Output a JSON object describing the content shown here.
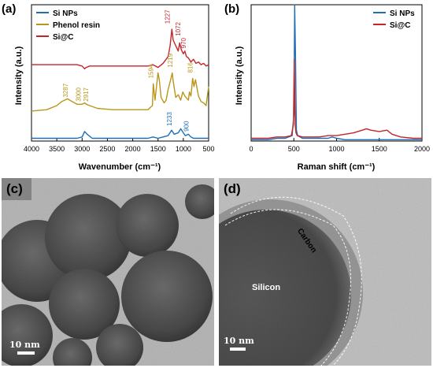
{
  "panels": {
    "a": {
      "letter": "(a)"
    },
    "b": {
      "letter": "(b)"
    },
    "c": {
      "letter": "(c)",
      "scale_label": "10 nm"
    },
    "d": {
      "letter": "(d)",
      "scale_label": "10 nm",
      "label_silicon": "Silicon",
      "label_carbon": "Carbon"
    }
  },
  "colors": {
    "si_nps": "#1f6fb5",
    "phenol_resin": "#b8961c",
    "sic": "#c2252a"
  },
  "chart_data": [
    {
      "type": "line",
      "xlabel": "Wavenumber (cm⁻¹)",
      "ylabel": "Intensity (a.u.)",
      "xlim": [
        4000,
        500
      ],
      "x_ticks": [
        "4000",
        "3500",
        "3000",
        "2500",
        "2000",
        "1500",
        "1000",
        "500"
      ],
      "legend_position": "top-left",
      "series": [
        {
          "name": "Si NPs",
          "color": "#1f6fb5",
          "x": [
            4000,
            3600,
            3300,
            3100,
            3000,
            2950,
            2900,
            2800,
            2500,
            2000,
            1700,
            1600,
            1500,
            1400,
            1300,
            1233,
            1180,
            1100,
            1050,
            1000,
            960,
            900,
            850,
            800,
            700,
            600,
            500
          ],
          "y": [
            0.02,
            0.02,
            0.02,
            0.02,
            0.03,
            0.07,
            0.05,
            0.02,
            0.02,
            0.02,
            0.02,
            0.03,
            0.02,
            0.03,
            0.04,
            0.08,
            0.05,
            0.06,
            0.09,
            0.06,
            0.04,
            0.05,
            0.03,
            0.02,
            0.02,
            0.02,
            0.02
          ]
        },
        {
          "name": "Phenol resin",
          "color": "#b8961c",
          "x": [
            4000,
            3700,
            3500,
            3400,
            3287,
            3200,
            3100,
            3000,
            2950,
            2917,
            2850,
            2700,
            2400,
            2100,
            1900,
            1700,
            1610,
            1594,
            1560,
            1500,
            1475,
            1440,
            1380,
            1340,
            1300,
            1250,
            1219,
            1200,
            1150,
            1100,
            1050,
            1010,
            970,
            900,
            880,
            850,
            816,
            790,
            760,
            700,
            650,
            600,
            550,
            500
          ],
          "y": [
            0.22,
            0.23,
            0.26,
            0.29,
            0.31,
            0.29,
            0.27,
            0.27,
            0.28,
            0.27,
            0.26,
            0.24,
            0.23,
            0.23,
            0.23,
            0.23,
            0.26,
            0.42,
            0.3,
            0.5,
            0.45,
            0.32,
            0.28,
            0.3,
            0.38,
            0.45,
            0.5,
            0.44,
            0.32,
            0.34,
            0.3,
            0.36,
            0.33,
            0.3,
            0.36,
            0.33,
            0.46,
            0.4,
            0.45,
            0.33,
            0.29,
            0.28,
            0.26,
            0.4
          ]
        },
        {
          "name": "Si@C",
          "color": "#c2252a",
          "x": [
            4000,
            3700,
            3500,
            3300,
            3100,
            3000,
            2950,
            2920,
            2850,
            2600,
            2300,
            2000,
            1800,
            1700,
            1600,
            1500,
            1400,
            1300,
            1260,
            1227,
            1200,
            1150,
            1100,
            1072,
            1040,
            1000,
            970,
            940,
            900,
            850,
            800,
            750,
            700,
            650,
            600,
            550,
            500
          ],
          "y": [
            0.56,
            0.56,
            0.56,
            0.56,
            0.56,
            0.55,
            0.53,
            0.54,
            0.55,
            0.55,
            0.55,
            0.55,
            0.55,
            0.55,
            0.56,
            0.54,
            0.57,
            0.62,
            0.7,
            0.82,
            0.74,
            0.7,
            0.66,
            0.72,
            0.67,
            0.64,
            0.66,
            0.62,
            0.61,
            0.58,
            0.6,
            0.57,
            0.58,
            0.56,
            0.57,
            0.55,
            0.56
          ]
        }
      ],
      "annotations": [
        {
          "text": "3287",
          "x": 3287,
          "y": 0.32,
          "color": "#b8961c"
        },
        {
          "text": "3000",
          "x": 3030,
          "y": 0.29,
          "color": "#b8961c"
        },
        {
          "text": "2917",
          "x": 2880,
          "y": 0.29,
          "color": "#b8961c"
        },
        {
          "text": "1594",
          "x": 1594,
          "y": 0.46,
          "color": "#b8961c"
        },
        {
          "text": "1219",
          "x": 1219,
          "y": 0.54,
          "color": "#b8961c"
        },
        {
          "text": "816",
          "x": 816,
          "y": 0.5,
          "color": "#b8961c"
        },
        {
          "text": "1227",
          "x": 1270,
          "y": 0.86,
          "color": "#c2252a"
        },
        {
          "text": "1072",
          "x": 1060,
          "y": 0.77,
          "color": "#c2252a"
        },
        {
          "text": "970",
          "x": 950,
          "y": 0.68,
          "color": "#c2252a"
        },
        {
          "text": "1233",
          "x": 1233,
          "y": 0.11,
          "color": "#1f6fb5"
        },
        {
          "text": "900",
          "x": 900,
          "y": 0.07,
          "color": "#1f6fb5"
        }
      ]
    },
    {
      "type": "line",
      "xlabel": "Raman shift (cm⁻¹)",
      "ylabel": "Intensity (a.u.)",
      "xlim": [
        0,
        2000
      ],
      "x_ticks": [
        "0",
        "500",
        "1000",
        "1500",
        "2000"
      ],
      "legend_position": "top-right",
      "series": [
        {
          "name": "Si NPs",
          "color": "#1f6fb5",
          "x": [
            0,
            100,
            200,
            300,
            400,
            480,
            500,
            510,
            520,
            530,
            545,
            600,
            800,
            900,
            950,
            1000,
            1100,
            1300,
            1500,
            1700,
            2000
          ],
          "y": [
            0.01,
            0.01,
            0.01,
            0.02,
            0.02,
            0.04,
            0.2,
            1.0,
            0.6,
            0.08,
            0.04,
            0.02,
            0.02,
            0.02,
            0.03,
            0.02,
            0.01,
            0.01,
            0.01,
            0.01,
            0.01
          ]
        },
        {
          "name": "Si@C",
          "color": "#c2252a",
          "x": [
            0,
            100,
            200,
            300,
            400,
            470,
            495,
            505,
            515,
            525,
            540,
            600,
            800,
            900,
            950,
            1000,
            1100,
            1200,
            1300,
            1350,
            1400,
            1500,
            1590,
            1650,
            1750,
            1900,
            2000
          ],
          "y": [
            0.02,
            0.02,
            0.02,
            0.03,
            0.03,
            0.04,
            0.12,
            0.6,
            0.12,
            0.06,
            0.04,
            0.03,
            0.03,
            0.04,
            0.04,
            0.04,
            0.05,
            0.06,
            0.08,
            0.09,
            0.08,
            0.07,
            0.08,
            0.05,
            0.03,
            0.02,
            0.02
          ]
        }
      ]
    }
  ]
}
